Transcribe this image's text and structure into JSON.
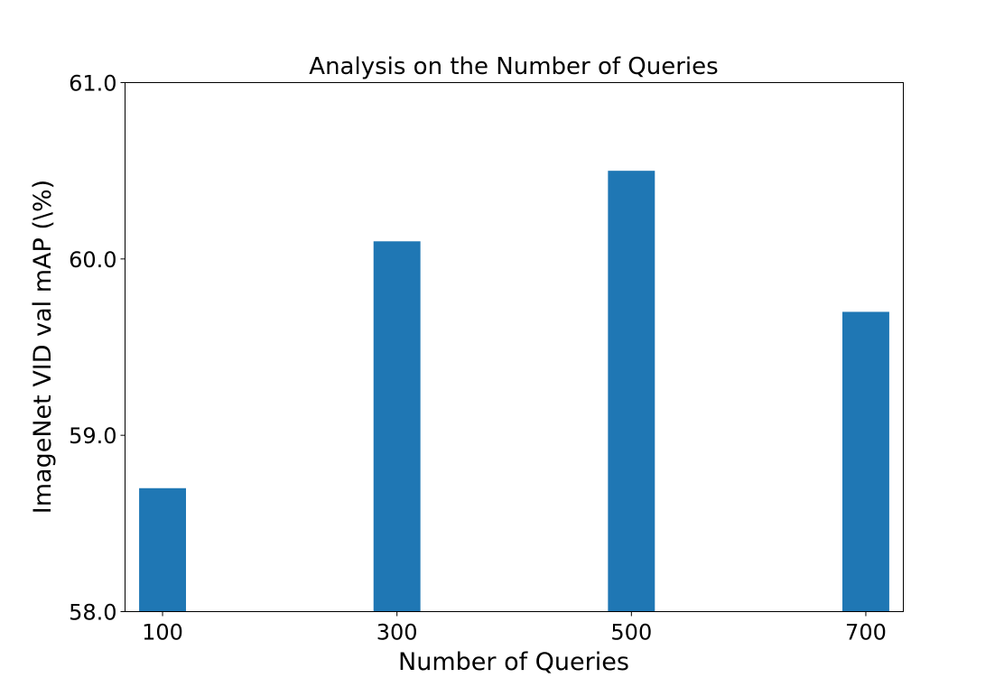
{
  "chart_data": {
    "type": "bar",
    "title": "Analysis on the Number of Queries",
    "xlabel": "Number of Queries",
    "ylabel": "ImageNet VID val mAP (\\%)",
    "categories": [
      "100",
      "300",
      "500",
      "700"
    ],
    "x": [
      100,
      300,
      500,
      700
    ],
    "values": [
      58.7,
      60.1,
      60.5,
      59.7
    ],
    "ylim": [
      58.0,
      61.0
    ],
    "xlim": [
      68,
      732
    ],
    "yticks": [
      "58.0",
      "59.0",
      "60.0",
      "61.0"
    ],
    "yticks_values": [
      58.0,
      59.0,
      60.0,
      61.0
    ],
    "bar_width": 40,
    "grid": false,
    "bar_color": "#1f77b4"
  }
}
